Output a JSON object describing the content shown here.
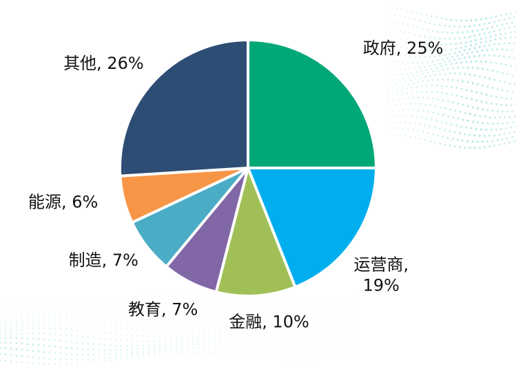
{
  "chart_data": {
    "type": "pie",
    "categories": [
      "政府",
      "运营商",
      "金融",
      "教育",
      "制造",
      "能源",
      "其他"
    ],
    "values": [
      25,
      19,
      10,
      7,
      7,
      6,
      26
    ],
    "labels": [
      "政府, 25%",
      "运营商,\n19%",
      "金融, 10%",
      "教育, 7%",
      "制造, 7%",
      "能源, 6%",
      "其他, 26%"
    ],
    "colors": [
      "#00A878",
      "#00AEEF",
      "#A0C057",
      "#8267A7",
      "#4BACC6",
      "#F79646",
      "#2E4D74"
    ]
  }
}
